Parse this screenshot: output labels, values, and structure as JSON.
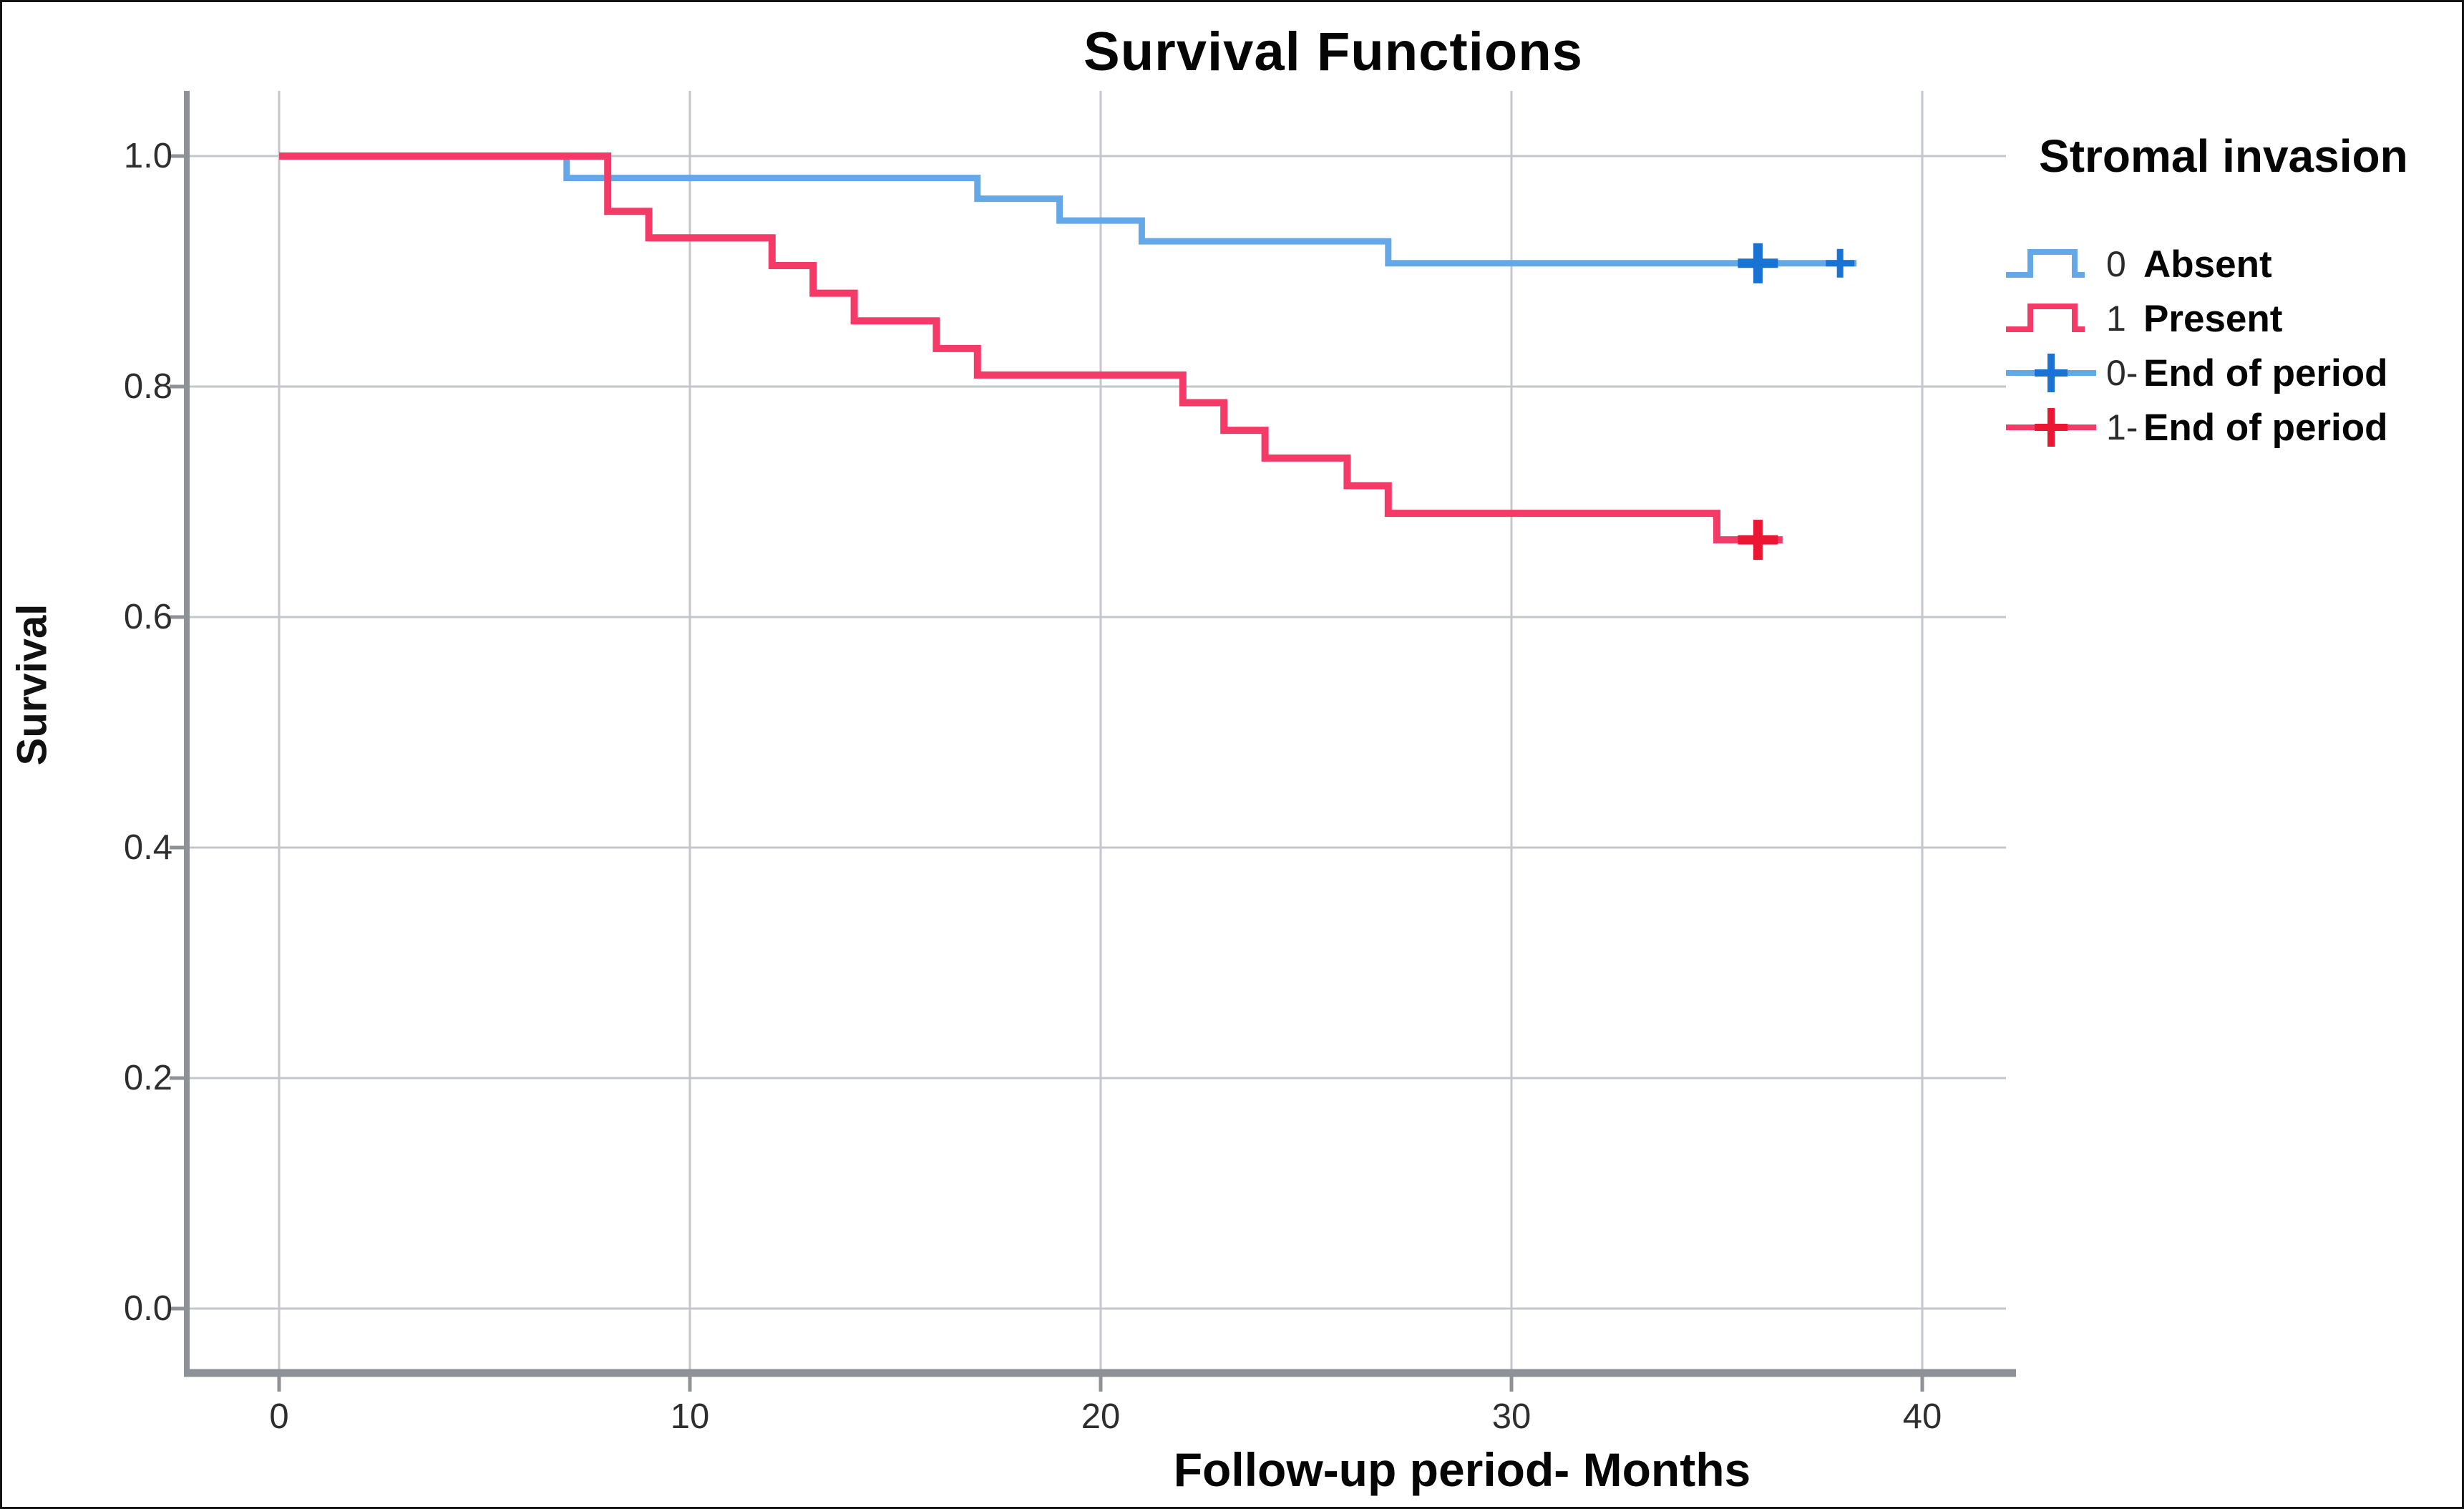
{
  "figure": {
    "title": "Survival Functions",
    "x_axis_label": "Follow-up period- Months",
    "y_axis_label": "Survival"
  },
  "legend": {
    "title": "Stromal invasion",
    "items": [
      {
        "prefix": "0",
        "label": "Absent",
        "symbol": "step",
        "color": "#64a8e8",
        "plus_color": "#1873d2"
      },
      {
        "prefix": "1",
        "label": "Present",
        "symbol": "step",
        "color": "#f43a67",
        "plus_color": "#ea1634"
      },
      {
        "prefix": "0-",
        "label": "End of period",
        "symbol": "plus-line",
        "color": "#64a8e8",
        "plus_color": "#1873d2"
      },
      {
        "prefix": "1-",
        "label": "End of period",
        "symbol": "plus-line",
        "color": "#f43a67",
        "plus_color": "#ea1634"
      }
    ]
  },
  "chart_data": {
    "type": "line",
    "subtype": "kaplan-meier-step",
    "title": "Survival Functions",
    "xlabel": "Follow-up period- Months",
    "ylabel": "Survival",
    "xlim": [
      -2.2,
      42
    ],
    "ylim": [
      -0.056,
      1.056
    ],
    "xticks": [
      0,
      10,
      20,
      30,
      40
    ],
    "yticks": [
      "0.0",
      "0.2",
      "0.4",
      "0.6",
      "0.8",
      "1.0"
    ],
    "grid": true,
    "legend_position": "right",
    "series": [
      {
        "name": "0 Absent",
        "group": "Stromal invasion = Absent",
        "color": "#64a8e8",
        "stroke_width": 9,
        "points": [
          [
            0,
            1.0
          ],
          [
            7,
            0.981
          ],
          [
            17,
            0.963
          ],
          [
            19,
            0.944
          ],
          [
            21,
            0.926
          ],
          [
            27,
            0.907
          ]
        ],
        "line_end_x": 38.4,
        "censors": [
          {
            "x": 36,
            "y": 0.907,
            "size": "large"
          },
          {
            "x": 38,
            "y": 0.907,
            "size": "small"
          }
        ],
        "censor_color": "#1873d2"
      },
      {
        "name": "1 Present",
        "group": "Stromal invasion = Present",
        "color": "#f43a67",
        "stroke_width": 10,
        "points": [
          [
            0,
            1.0
          ],
          [
            8,
            0.952
          ],
          [
            9,
            0.929
          ],
          [
            12,
            0.905
          ],
          [
            13,
            0.881
          ],
          [
            14,
            0.857
          ],
          [
            16,
            0.833
          ],
          [
            17,
            0.81
          ],
          [
            22,
            0.786
          ],
          [
            23,
            0.762
          ],
          [
            24,
            0.738
          ],
          [
            26,
            0.714
          ],
          [
            27,
            0.69
          ],
          [
            35,
            0.667
          ]
        ],
        "line_end_x": 36.6,
        "censors": [
          {
            "x": 36,
            "y": 0.667,
            "size": "large"
          }
        ],
        "censor_color": "#ea1634"
      }
    ]
  },
  "colors": {
    "background": "#ffffff",
    "gridline": "#c3c7cb",
    "axis_line": "#8e9296",
    "tick_label": "#2e2e2e",
    "text": "#050505",
    "absent_line": "#64a8e8",
    "absent_cross": "#1873d2",
    "present_line": "#f43a67",
    "present_cross": "#ea1634"
  }
}
